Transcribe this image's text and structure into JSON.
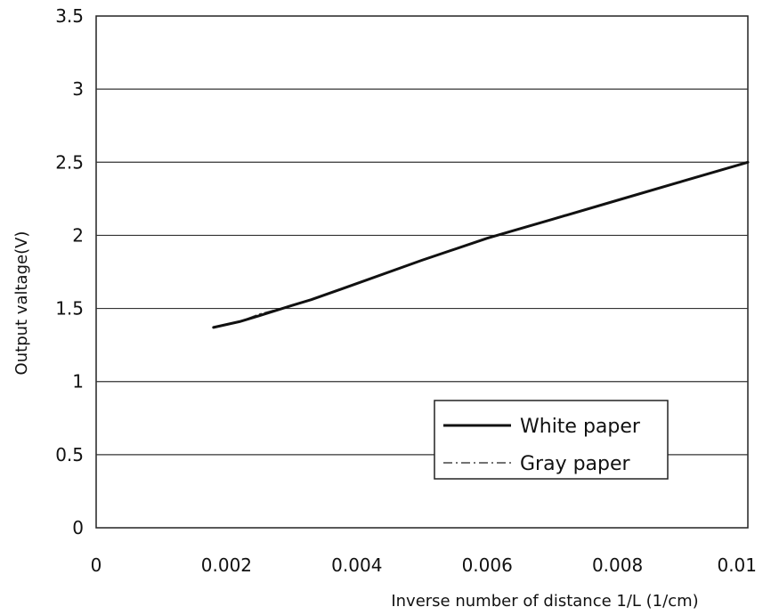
{
  "chart_data": {
    "type": "line",
    "title": "",
    "xlabel": "Inverse number of distance 1/L (1/cm)",
    "ylabel": "Output valtage(V)",
    "xlim": [
      0,
      0.01
    ],
    "ylim": [
      0,
      3.5
    ],
    "x_ticks": [
      0,
      0.002,
      0.004,
      0.006,
      0.008,
      0.01
    ],
    "x_tick_labels": [
      "0",
      "0.002",
      "0.004",
      "0.006",
      "0.008",
      "0.01"
    ],
    "y_ticks": [
      0,
      0.5,
      1,
      1.5,
      2,
      2.5,
      3,
      3.5
    ],
    "y_tick_labels": [
      "0",
      "0.5",
      "1",
      "1.5",
      "2",
      "2.5",
      "3",
      "3.5"
    ],
    "grid": "horizontal",
    "legend_position": "bottom-right",
    "series": [
      {
        "name": "White paper",
        "style": "solid",
        "color": "#111111",
        "x": [
          0.0018,
          0.002,
          0.0022,
          0.0025,
          0.003,
          0.0033,
          0.004,
          0.005,
          0.006,
          0.007,
          0.008,
          0.009,
          0.01
        ],
        "y": [
          1.37,
          1.39,
          1.41,
          1.45,
          1.52,
          1.56,
          1.67,
          1.83,
          1.98,
          2.11,
          2.24,
          2.37,
          2.5
        ]
      },
      {
        "name": "Gray paper",
        "style": "dash-dot",
        "color": "#444444",
        "x": [
          0.0018,
          0.002,
          0.0022,
          0.0025,
          0.003,
          0.0033,
          0.004,
          0.005,
          0.006,
          0.007,
          0.008,
          0.009,
          0.01
        ],
        "y": [
          1.37,
          1.39,
          1.41,
          1.46,
          1.52,
          1.56,
          1.67,
          1.83,
          1.98,
          2.11,
          2.24,
          2.37,
          2.5
        ]
      }
    ]
  }
}
